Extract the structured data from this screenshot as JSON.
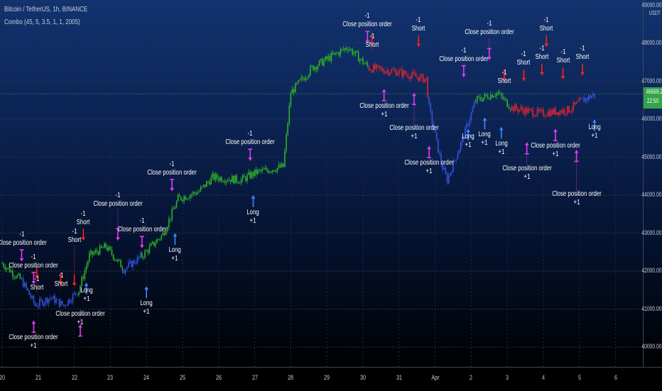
{
  "header": {
    "symbol": "Bitcoin / TetherUS, 1h, BINANCE",
    "indicator": "Combo (45, 5, 3.5, 1, 1, 2005)"
  },
  "price_axis": {
    "currency": "USDT",
    "ticks": [
      "49000.00",
      "48000.00",
      "47000.00",
      "46000.00",
      "45000.00",
      "44000.00",
      "43000.00",
      "42000.00",
      "41000.00",
      "40000.00"
    ],
    "last_price": "46669.25",
    "countdown": "22:50",
    "last_price_color": "#34a34a"
  },
  "time_axis": {
    "ticks": [
      "20",
      "21",
      "22",
      "23",
      "24",
      "25",
      "26",
      "27",
      "28",
      "29",
      "30",
      "31",
      "Apr",
      "2",
      "3",
      "4",
      "5",
      "6"
    ]
  },
  "colors": {
    "up_trend": "#2fb52a",
    "down_trend": "#3355e0",
    "short_trend": "#e0262e",
    "long_arrow": "#3d8bff",
    "short_arrow": "#ff2020",
    "close_marker": "#e23cf0"
  },
  "chart_data": {
    "type": "candlestick",
    "ylim": [
      40000,
      49000
    ],
    "xlim": [
      "03-20 00:00",
      "04-06 12:00"
    ],
    "grid": true,
    "series": [
      {
        "t": "03-20 00:00",
        "p": 42200,
        "c": "up"
      },
      {
        "t": "03-20 13:00",
        "p": 41750,
        "c": "down"
      },
      {
        "t": "03-20 22:00",
        "p": 41100,
        "c": "down"
      },
      {
        "t": "03-21 08:00",
        "p": 41300,
        "c": "down"
      },
      {
        "t": "03-21 17:00",
        "p": 41100,
        "c": "down"
      },
      {
        "t": "03-22 03:00",
        "p": 41500,
        "c": "up"
      },
      {
        "t": "03-22 10:00",
        "p": 42400,
        "c": "up"
      },
      {
        "t": "03-22 21:00",
        "p": 42650,
        "c": "up"
      },
      {
        "t": "03-23 09:00",
        "p": 42050,
        "c": "down"
      },
      {
        "t": "03-23 21:00",
        "p": 42400,
        "c": "up"
      },
      {
        "t": "03-24 11:00",
        "p": 42970,
        "c": "up"
      },
      {
        "t": "03-24 21:00",
        "p": 43900,
        "c": "up"
      },
      {
        "t": "03-25 11:00",
        "p": 44100,
        "c": "up"
      },
      {
        "t": "03-25 20:00",
        "p": 44470,
        "c": "up"
      },
      {
        "t": "03-26 15:00",
        "p": 44400,
        "c": "up"
      },
      {
        "t": "03-27 01:00",
        "p": 44600,
        "c": "up"
      },
      {
        "t": "03-27 19:00",
        "p": 44750,
        "c": "up"
      },
      {
        "t": "03-28 00:00",
        "p": 46700,
        "c": "up"
      },
      {
        "t": "03-28 14:00",
        "p": 47350,
        "c": "up"
      },
      {
        "t": "03-29 14:00",
        "p": 47900,
        "c": "up"
      },
      {
        "t": "03-30 04:00",
        "p": 47350,
        "c": "short"
      },
      {
        "t": "03-30 23:00",
        "p": 47250,
        "c": "short"
      },
      {
        "t": "03-31 18:00",
        "p": 47050,
        "c": "short"
      },
      {
        "t": "03-31 20:00",
        "p": 46300,
        "c": "down"
      },
      {
        "t": "04-01 04:00",
        "p": 44840,
        "c": "down"
      },
      {
        "t": "04-01 08:00",
        "p": 44400,
        "c": "down"
      },
      {
        "t": "04-01 18:00",
        "p": 45450,
        "c": "down"
      },
      {
        "t": "04-02 03:00",
        "p": 46500,
        "c": "up"
      },
      {
        "t": "04-02 17:00",
        "p": 46700,
        "c": "up"
      },
      {
        "t": "04-03 03:00",
        "p": 46300,
        "c": "short"
      },
      {
        "t": "04-03 22:00",
        "p": 46150,
        "c": "short"
      },
      {
        "t": "04-04 17:00",
        "p": 46250,
        "c": "short"
      },
      {
        "t": "04-05 02:00",
        "p": 46500,
        "c": "down"
      },
      {
        "t": "04-05 11:00",
        "p": 46670,
        "c": "up"
      }
    ],
    "signals": [
      {
        "t": "03-20 13:00",
        "p": 42150,
        "kind": "close",
        "dir": "sell",
        "label": "Close position order",
        "qty": "-1"
      },
      {
        "t": "03-20 21:00",
        "p": 41550,
        "kind": "close",
        "dir": "sell",
        "label": "Close position order",
        "qty": "-1"
      },
      {
        "t": "03-20 23:00",
        "p": 41700,
        "kind": "short",
        "dir": "sell",
        "label": "Short",
        "qty": "-1"
      },
      {
        "t": "03-20 21:00",
        "p": 40800,
        "kind": "close",
        "dir": "buy",
        "label": "Close position order",
        "qty": "+1"
      },
      {
        "t": "03-21 15:00",
        "p": 41550,
        "kind": "short",
        "dir": "sell",
        "label": "Short",
        "qty": "-1"
      },
      {
        "t": "03-22 00:00",
        "p": 41500,
        "kind": "short",
        "dir": "sell",
        "label": "Short",
        "qty": "-1"
      },
      {
        "t": "03-22 04:00",
        "p": 40700,
        "kind": "close",
        "dir": "buy",
        "label": "Close position order",
        "qty": "+1"
      },
      {
        "t": "03-22 06:00",
        "p": 42700,
        "kind": "short",
        "dir": "sell",
        "label": "Short",
        "qty": "-1"
      },
      {
        "t": "03-22 08:00",
        "p": 41800,
        "kind": "long",
        "dir": "buy",
        "label": "Long",
        "qty": "+1"
      },
      {
        "t": "03-23 05:00",
        "p": 42700,
        "kind": "close",
        "dir": "sell",
        "label": "Close position order",
        "qty": "-1"
      },
      {
        "t": "03-23 21:00",
        "p": 42500,
        "kind": "close",
        "dir": "sell",
        "label": "Close position order",
        "qty": "-1"
      },
      {
        "t": "03-24 00:00",
        "p": 41700,
        "kind": "long",
        "dir": "buy",
        "label": "Long",
        "qty": "+1"
      },
      {
        "t": "03-24 17:00",
        "p": 44000,
        "kind": "close",
        "dir": "sell",
        "label": "Close position order",
        "qty": "-1"
      },
      {
        "t": "03-24 19:00",
        "p": 43100,
        "kind": "long",
        "dir": "buy",
        "label": "Long",
        "qty": "+1"
      },
      {
        "t": "03-26 21:00",
        "p": 44800,
        "kind": "close",
        "dir": "sell",
        "label": "Close position order",
        "qty": "-1"
      },
      {
        "t": "03-26 23:00",
        "p": 44100,
        "kind": "long",
        "dir": "buy",
        "label": "Long",
        "qty": "+1"
      },
      {
        "t": "03-30 03:00",
        "p": 47900,
        "kind": "close",
        "dir": "sell",
        "label": "Close position order",
        "qty": "-1"
      },
      {
        "t": "03-30 06:00",
        "p": 47850,
        "kind": "short",
        "dir": "sell",
        "label": "Short",
        "qty": "-1"
      },
      {
        "t": "03-30 14:00",
        "p": 46900,
        "kind": "close",
        "dir": "buy",
        "label": "Close position order",
        "qty": "+1"
      },
      {
        "t": "03-31 10:00",
        "p": 46800,
        "kind": "close",
        "dir": "buy",
        "label": "Close position order",
        "qty": "+1"
      },
      {
        "t": "03-31 13:00",
        "p": 47800,
        "kind": "short",
        "dir": "sell",
        "label": "Short",
        "qty": "-1"
      },
      {
        "t": "03-31 20:00",
        "p": 45400,
        "kind": "close",
        "dir": "buy",
        "label": "Close position order",
        "qty": "+1"
      },
      {
        "t": "04-01 19:00",
        "p": 47000,
        "kind": "close",
        "dir": "sell",
        "label": "Close position order",
        "qty": "-1"
      },
      {
        "t": "04-01 22:00",
        "p": 45850,
        "kind": "long",
        "dir": "buy",
        "label": "Long",
        "qty": "+1"
      },
      {
        "t": "04-02 09:00",
        "p": 46150,
        "kind": "long",
        "dir": "buy",
        "label": "Long",
        "qty": "+1"
      },
      {
        "t": "04-02 12:00",
        "p": 47450,
        "kind": "close",
        "dir": "sell",
        "label": "Close position order",
        "qty": "-1"
      },
      {
        "t": "04-02 20:00",
        "p": 45900,
        "kind": "long",
        "dir": "buy",
        "label": "Long",
        "qty": "+1"
      },
      {
        "t": "04-02 22:00",
        "p": 46900,
        "kind": "short",
        "dir": "sell",
        "label": "Short",
        "qty": "-1"
      },
      {
        "t": "04-03 11:00",
        "p": 46900,
        "kind": "short",
        "dir": "sell",
        "label": "Short",
        "qty": "-1"
      },
      {
        "t": "04-03 13:00",
        "p": 45500,
        "kind": "close",
        "dir": "buy",
        "label": "Close position order",
        "qty": "+1"
      },
      {
        "t": "04-03 23:00",
        "p": 47050,
        "kind": "short",
        "dir": "sell",
        "label": "Short",
        "qty": "-1"
      },
      {
        "t": "04-04 02:00",
        "p": 47800,
        "kind": "short",
        "dir": "sell",
        "label": "Short",
        "qty": "-1"
      },
      {
        "t": "04-04 08:00",
        "p": 45850,
        "kind": "close",
        "dir": "buy",
        "label": "Close position order",
        "qty": "+1"
      },
      {
        "t": "04-04 13:00",
        "p": 46950,
        "kind": "short",
        "dir": "sell",
        "label": "Short",
        "qty": "-1"
      },
      {
        "t": "04-04 22:00",
        "p": 45300,
        "kind": "close",
        "dir": "buy",
        "label": "Close position order",
        "qty": "+1"
      },
      {
        "t": "04-05 02:00",
        "p": 47050,
        "kind": "short",
        "dir": "sell",
        "label": "Short",
        "qty": "-1"
      },
      {
        "t": "04-05 10:00",
        "p": 46100,
        "kind": "long",
        "dir": "buy",
        "label": "Long",
        "qty": "+1"
      }
    ]
  }
}
